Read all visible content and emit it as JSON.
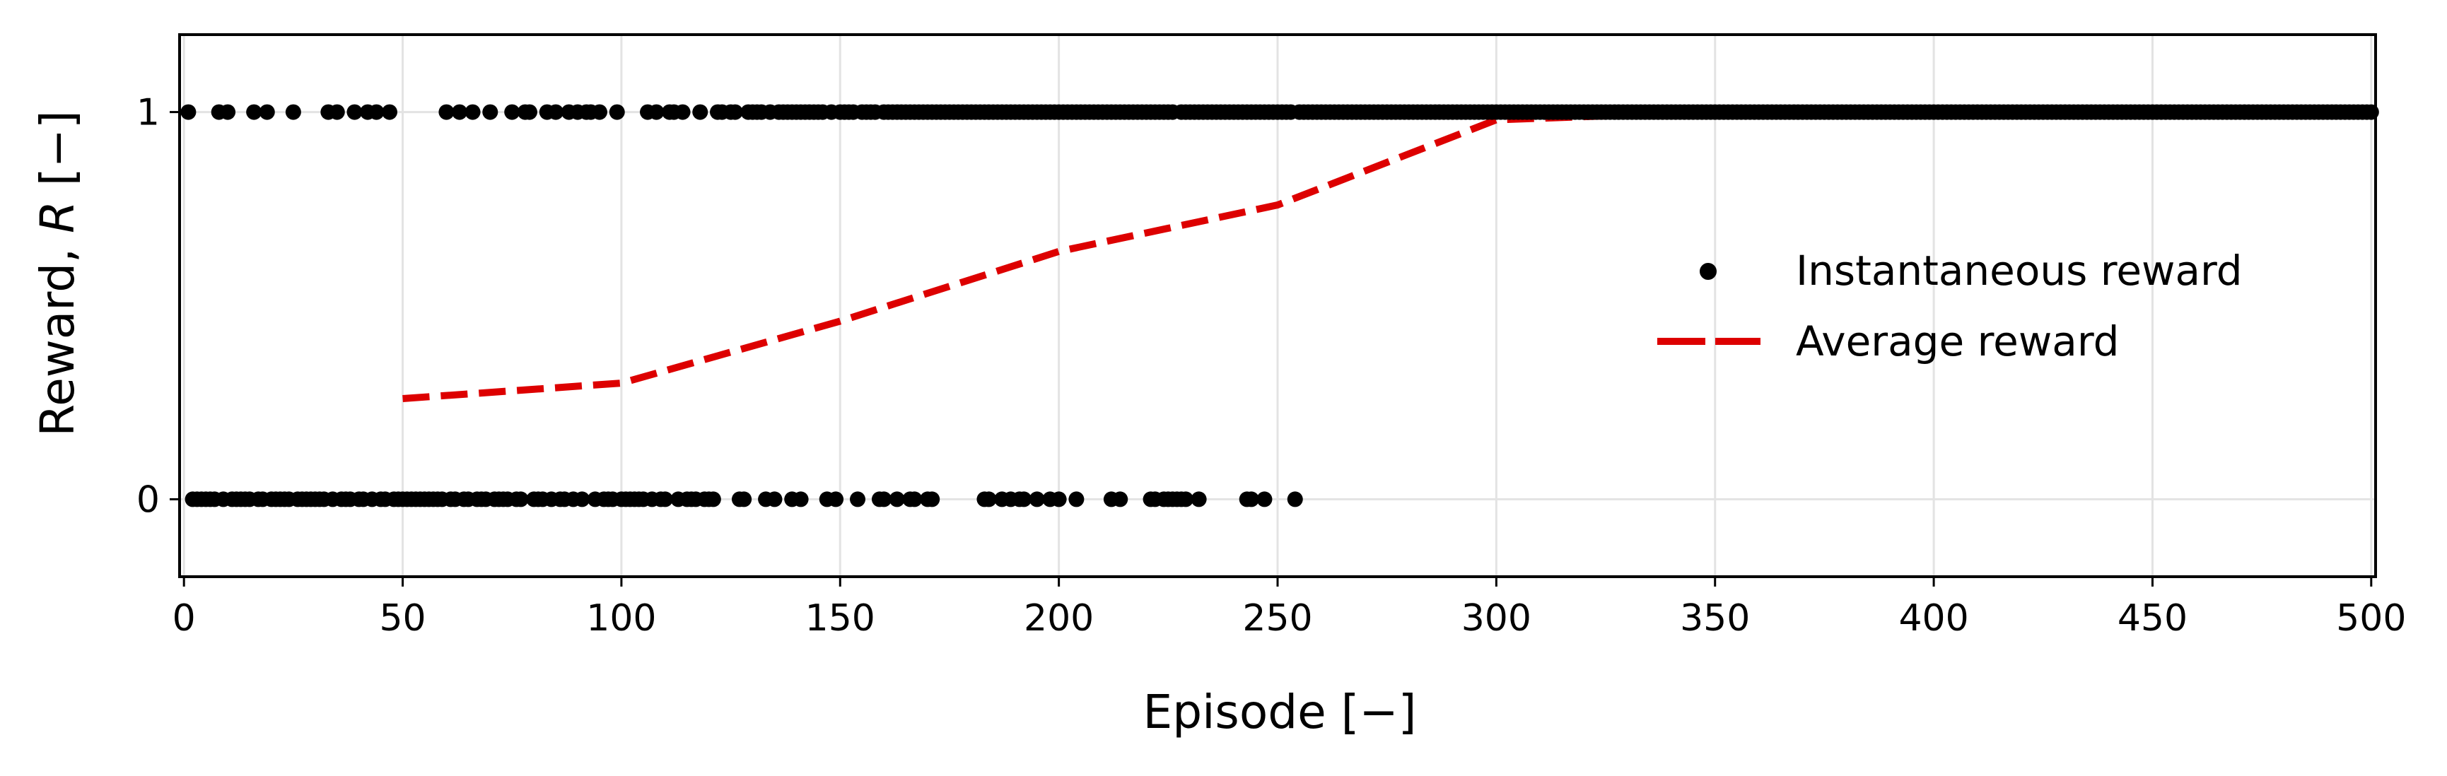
{
  "chart_data": {
    "type": "scatter",
    "xlabel": "Episode [−]",
    "ylabel_prefix": "Reward, ",
    "ylabel_var": "R",
    "ylabel_suffix": " [−]",
    "xlim": [
      -1,
      501
    ],
    "ylim": [
      -0.2,
      1.2
    ],
    "xticks": [
      "0",
      "50",
      "100",
      "150",
      "200",
      "250",
      "300",
      "350",
      "400",
      "450",
      "500"
    ],
    "yticks": [
      "0",
      "1"
    ],
    "grid": true,
    "legend_position": "center-right",
    "series": [
      {
        "name": "Instantaneous reward",
        "type": "scatter",
        "color": "#000000",
        "points_reward_1": [
          1,
          8,
          10,
          16,
          19,
          25,
          33,
          35,
          39,
          42,
          44,
          47,
          60,
          63,
          66,
          70,
          75,
          78,
          79,
          83,
          85,
          88,
          90,
          92,
          93,
          95,
          99,
          106,
          108,
          111,
          112,
          114,
          118,
          122,
          123,
          125,
          126,
          129,
          130,
          131,
          132,
          134,
          136,
          137,
          138,
          139,
          140,
          141,
          142,
          143,
          144,
          145,
          146,
          148,
          150,
          151,
          152,
          153,
          155,
          156,
          157,
          158,
          160,
          161,
          162,
          163,
          164,
          165,
          166,
          167,
          168,
          169,
          170,
          171,
          172,
          173,
          174,
          175,
          176,
          177,
          178,
          179,
          180,
          181,
          182,
          183,
          184,
          185,
          186,
          187,
          188,
          189,
          190,
          191,
          192,
          193,
          194,
          195,
          196,
          197,
          198,
          199,
          200,
          201,
          202,
          203,
          204,
          205,
          206,
          207,
          208,
          209,
          210,
          211,
          212,
          213,
          214,
          215,
          216,
          217,
          218,
          219,
          220,
          221,
          222,
          223,
          224,
          225,
          226,
          228,
          229,
          230,
          231,
          232,
          233,
          234,
          235,
          236,
          237,
          238,
          239,
          240,
          241,
          242,
          243,
          244,
          245,
          246,
          247,
          248,
          249,
          250,
          251,
          252,
          253,
          255,
          256,
          257,
          258,
          259,
          260,
          261,
          262,
          263,
          264,
          265,
          266,
          267,
          268,
          269,
          270,
          271,
          272,
          273,
          274,
          275,
          276,
          277,
          278,
          279,
          280,
          281,
          282,
          283,
          284,
          285,
          286,
          287,
          288,
          289,
          290,
          291,
          292,
          293,
          294,
          295,
          296,
          297,
          298,
          299,
          300,
          301,
          302,
          303,
          304,
          305,
          306,
          307,
          308,
          309,
          310,
          311,
          312,
          313,
          314,
          315,
          316,
          317,
          318,
          319,
          320,
          321,
          322,
          323,
          324,
          325,
          326,
          327,
          328,
          329,
          330,
          331,
          332,
          333,
          334,
          335,
          336,
          337,
          338,
          339,
          340,
          341,
          342,
          343,
          344,
          345,
          346,
          347,
          348,
          349,
          350,
          351,
          352,
          353,
          354,
          355,
          356,
          357,
          358,
          359,
          360,
          361,
          362,
          363,
          364,
          365,
          366,
          367,
          368,
          369,
          370,
          371,
          372,
          373,
          374,
          375,
          376,
          377,
          378,
          379,
          380,
          381,
          382,
          383,
          384,
          385,
          386,
          387,
          388,
          389,
          390,
          391,
          392,
          393,
          394,
          395,
          396,
          397,
          398,
          399,
          400,
          401,
          402,
          403,
          404,
          405,
          406,
          407,
          408,
          409,
          410,
          411,
          412,
          413,
          414,
          415,
          416,
          417,
          418,
          419,
          420,
          421,
          422,
          423,
          424,
          425,
          426,
          427,
          428,
          429,
          430,
          431,
          432,
          433,
          434,
          435,
          436,
          437,
          438,
          439,
          440,
          441,
          442,
          443,
          444,
          445,
          446,
          447,
          448,
          449,
          450,
          451,
          452,
          453,
          454,
          455,
          456,
          457,
          458,
          459,
          460,
          461,
          462,
          463,
          464,
          465,
          466,
          467,
          468,
          469,
          470,
          471,
          472,
          473,
          474,
          475,
          476,
          477,
          478,
          479,
          480,
          481,
          482,
          483,
          484,
          485,
          486,
          487,
          488,
          489,
          490,
          491,
          492,
          493,
          494,
          495,
          496,
          497,
          498,
          499,
          500
        ],
        "points_reward_0": [
          2,
          3,
          4,
          5,
          6,
          7,
          9,
          11,
          12,
          13,
          14,
          15,
          17,
          18,
          20,
          21,
          22,
          23,
          24,
          26,
          27,
          28,
          29,
          30,
          31,
          32,
          34,
          36,
          37,
          38,
          40,
          41,
          43,
          45,
          46,
          48,
          49,
          50,
          51,
          52,
          53,
          54,
          55,
          56,
          57,
          58,
          59,
          61,
          62,
          64,
          65,
          67,
          68,
          69,
          71,
          72,
          73,
          74,
          76,
          77,
          80,
          81,
          82,
          84,
          86,
          87,
          89,
          91,
          94,
          96,
          97,
          98,
          100,
          101,
          102,
          103,
          104,
          105,
          107,
          109,
          110,
          113,
          115,
          116,
          117,
          119,
          120,
          121,
          127,
          128,
          133,
          135,
          139,
          141,
          147,
          149,
          154,
          159,
          160,
          163,
          166,
          167,
          170,
          171,
          183,
          184,
          187,
          189,
          191,
          192,
          195,
          198,
          200,
          204,
          212,
          214,
          221,
          222,
          224,
          225,
          226,
          227,
          228,
          229,
          232,
          243,
          244,
          247,
          254
        ]
      },
      {
        "name": "Average reward",
        "type": "line",
        "color": "#dd0000",
        "x": [
          50,
          100,
          150,
          200,
          250,
          300,
          350,
          400,
          450
        ],
        "y": [
          0.26,
          0.3,
          0.46,
          0.64,
          0.76,
          0.98,
          1.0,
          1.0,
          1.0
        ]
      }
    ]
  }
}
